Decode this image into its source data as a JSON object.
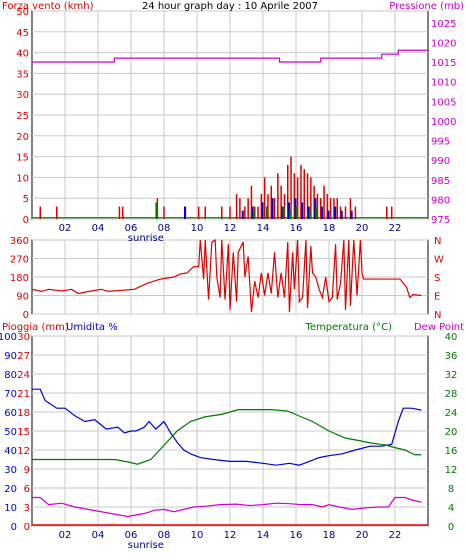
{
  "title": "24 hour graph day : 10 Aprile 2007",
  "colors": {
    "wind": "#dd0000",
    "wind_b": "#0000cc",
    "wind_g": "#008000",
    "pressure": "#cc00cc",
    "direction": "#dd0000",
    "humidity": "#0000cc",
    "temperature": "#007700",
    "dewpoint": "#cc00cc",
    "rain": "#dd0000",
    "grid": "#c8c8c8"
  },
  "chart_data": [
    {
      "type": "bar",
      "name": "wind-pressure",
      "left_axis_label": "Forza vento (kmh)",
      "right_axis_label": "Pressione (mb)",
      "x_ticks": [
        "02",
        "04",
        "06",
        "08",
        "10",
        "12",
        "14",
        "16",
        "18",
        "20",
        "22"
      ],
      "sunrise_label": "sunrise",
      "sunrise_hour": 6.9,
      "y_left_ticks": [
        0,
        5,
        10,
        15,
        20,
        25,
        30,
        35,
        40,
        45,
        50
      ],
      "y_right_ticks": [
        975,
        980,
        985,
        990,
        995,
        1000,
        1005,
        1010,
        1015,
        1020,
        1025
      ],
      "ylim_left": [
        0,
        50
      ],
      "ylim_right": [
        975,
        1028
      ],
      "pressure_series": [
        [
          0,
          1015
        ],
        [
          5,
          1015
        ],
        [
          5,
          1016
        ],
        [
          11,
          1016
        ],
        [
          11,
          1016
        ],
        [
          15,
          1016
        ],
        [
          15,
          1015
        ],
        [
          17.5,
          1015
        ],
        [
          17.5,
          1016
        ],
        [
          20,
          1016
        ],
        [
          20,
          1016
        ],
        [
          21.2,
          1016
        ],
        [
          21.2,
          1017
        ],
        [
          22.2,
          1017
        ],
        [
          22.2,
          1018
        ],
        [
          24,
          1018
        ]
      ],
      "gust_bars": [
        [
          0.5,
          3
        ],
        [
          1.5,
          3
        ],
        [
          5.3,
          3
        ],
        [
          5.5,
          3
        ],
        [
          7.6,
          5
        ],
        [
          8.0,
          3
        ],
        [
          9.3,
          3
        ],
        [
          10.1,
          3
        ],
        [
          10.5,
          3
        ],
        [
          11.5,
          3
        ],
        [
          12.0,
          3
        ],
        [
          12.4,
          6
        ],
        [
          12.6,
          5
        ],
        [
          12.9,
          3
        ],
        [
          13.1,
          5
        ],
        [
          13.3,
          8
        ],
        [
          13.5,
          3
        ],
        [
          13.7,
          3
        ],
        [
          13.9,
          6
        ],
        [
          14.1,
          10
        ],
        [
          14.3,
          6
        ],
        [
          14.5,
          8
        ],
        [
          14.7,
          5
        ],
        [
          14.9,
          11
        ],
        [
          15.1,
          8
        ],
        [
          15.3,
          6
        ],
        [
          15.5,
          13
        ],
        [
          15.7,
          15
        ],
        [
          15.9,
          11
        ],
        [
          16.1,
          10
        ],
        [
          16.3,
          13
        ],
        [
          16.5,
          12
        ],
        [
          16.7,
          11
        ],
        [
          16.9,
          10
        ],
        [
          17.1,
          8
        ],
        [
          17.3,
          6
        ],
        [
          17.5,
          5
        ],
        [
          17.7,
          8
        ],
        [
          17.9,
          6
        ],
        [
          18.1,
          5
        ],
        [
          18.3,
          5
        ],
        [
          18.5,
          5
        ],
        [
          18.7,
          3
        ],
        [
          19.0,
          3
        ],
        [
          19.3,
          5
        ],
        [
          19.6,
          3
        ],
        [
          21.5,
          3
        ],
        [
          21.8,
          3
        ]
      ],
      "avg_bars_blue": [
        [
          9.2,
          3
        ],
        [
          12.7,
          2
        ],
        [
          13.3,
          3
        ],
        [
          13.9,
          4
        ],
        [
          14.5,
          5
        ],
        [
          15.1,
          3
        ],
        [
          15.5,
          4
        ],
        [
          15.9,
          5
        ],
        [
          16.3,
          4
        ],
        [
          16.7,
          3
        ],
        [
          17.1,
          5
        ],
        [
          17.5,
          3
        ],
        [
          17.9,
          2
        ],
        [
          18.3,
          3
        ],
        [
          18.7,
          2
        ],
        [
          19.3,
          2
        ]
      ],
      "avg_bars_green": [
        [
          7.6,
          4
        ],
        [
          13.5,
          2
        ],
        [
          14.3,
          3
        ],
        [
          15.3,
          3
        ],
        [
          15.7,
          2
        ],
        [
          16.1,
          3
        ],
        [
          16.9,
          2
        ],
        [
          17.3,
          3
        ]
      ]
    },
    {
      "type": "line",
      "name": "wind-direction",
      "y_left_ticks": [
        0,
        90,
        180,
        270,
        360
      ],
      "ylim": [
        0,
        360
      ],
      "right_labels": [
        "N",
        "W",
        "S",
        "E",
        "N"
      ],
      "direction_series": [
        [
          0.0,
          120
        ],
        [
          0.6,
          110
        ],
        [
          1.0,
          120
        ],
        [
          1.8,
          112
        ],
        [
          2.4,
          120
        ],
        [
          2.8,
          100
        ],
        [
          3.6,
          112
        ],
        [
          4.2,
          120
        ],
        [
          4.6,
          110
        ],
        [
          6.2,
          120
        ],
        [
          6.6,
          135
        ],
        [
          7.0,
          150
        ],
        [
          7.4,
          160
        ],
        [
          7.8,
          170
        ],
        [
          8.2,
          175
        ],
        [
          8.6,
          180
        ],
        [
          9.0,
          195
        ],
        [
          9.4,
          200
        ],
        [
          9.8,
          230
        ],
        [
          10.1,
          230
        ],
        [
          10.2,
          360
        ],
        [
          10.4,
          170
        ],
        [
          10.5,
          360
        ],
        [
          10.7,
          70
        ],
        [
          10.9,
          350
        ],
        [
          11.1,
          360
        ],
        [
          11.2,
          180
        ],
        [
          11.4,
          80
        ],
        [
          11.5,
          360
        ],
        [
          11.7,
          70
        ],
        [
          11.9,
          340
        ],
        [
          12.0,
          20
        ],
        [
          12.2,
          300
        ],
        [
          12.4,
          60
        ],
        [
          12.5,
          300
        ],
        [
          12.8,
          350
        ],
        [
          12.9,
          180
        ],
        [
          13.1,
          280
        ],
        [
          13.3,
          10
        ],
        [
          13.5,
          160
        ],
        [
          13.7,
          80
        ],
        [
          13.9,
          200
        ],
        [
          14.1,
          90
        ],
        [
          14.3,
          200
        ],
        [
          14.5,
          100
        ],
        [
          14.7,
          300
        ],
        [
          14.9,
          80
        ],
        [
          15.1,
          200
        ],
        [
          15.3,
          80
        ],
        [
          15.5,
          350
        ],
        [
          15.6,
          10
        ],
        [
          15.8,
          300
        ],
        [
          15.9,
          120
        ],
        [
          16.1,
          360
        ],
        [
          16.2,
          60
        ],
        [
          16.4,
          80
        ],
        [
          16.6,
          360
        ],
        [
          16.7,
          30
        ],
        [
          16.9,
          330
        ],
        [
          17.0,
          200
        ],
        [
          17.2,
          180
        ],
        [
          17.4,
          120
        ],
        [
          17.6,
          80
        ],
        [
          17.8,
          180
        ],
        [
          18.0,
          60
        ],
        [
          18.2,
          80
        ],
        [
          18.4,
          340
        ],
        [
          18.5,
          70
        ],
        [
          18.7,
          150
        ],
        [
          18.9,
          360
        ],
        [
          19.0,
          20
        ],
        [
          19.2,
          360
        ],
        [
          19.3,
          40
        ],
        [
          19.5,
          360
        ],
        [
          19.7,
          90
        ],
        [
          19.9,
          360
        ],
        [
          20.0,
          200
        ],
        [
          20.1,
          170
        ],
        [
          21.2,
          170
        ],
        [
          22.3,
          170
        ],
        [
          22.5,
          150
        ],
        [
          22.7,
          130
        ],
        [
          22.9,
          80
        ],
        [
          23.1,
          95
        ],
        [
          23.6,
          90
        ]
      ]
    },
    {
      "type": "line",
      "name": "humidity-temperature",
      "left_label_rain": "Pioggia (mm)",
      "left_label_humidity": "Umidita %",
      "right_label_temperature": "Temperatura (°C)",
      "right_label_dewpoint": "Dew Point",
      "y_humidity_ticks": [
        0,
        10,
        20,
        30,
        40,
        50,
        60,
        70,
        80,
        90,
        100
      ],
      "y_rain_ticks": [
        0,
        3,
        6,
        9,
        12,
        15,
        18,
        21,
        24,
        27,
        30
      ],
      "y_temp_ticks": [
        0,
        4,
        8,
        12,
        16,
        20,
        24,
        28,
        32,
        36,
        40
      ],
      "ylim_humidity": [
        0,
        100
      ],
      "ylim_temp": [
        0,
        40
      ],
      "humidity_series": [
        [
          0,
          72
        ],
        [
          0.5,
          72
        ],
        [
          0.8,
          66
        ],
        [
          1.5,
          62
        ],
        [
          2.0,
          62
        ],
        [
          2.6,
          58
        ],
        [
          3.2,
          55
        ],
        [
          3.8,
          56
        ],
        [
          4.5,
          51
        ],
        [
          5.2,
          52
        ],
        [
          5.6,
          49
        ],
        [
          6.0,
          50
        ],
        [
          6.3,
          50
        ],
        [
          6.8,
          52
        ],
        [
          7.1,
          55
        ],
        [
          7.5,
          51
        ],
        [
          8.0,
          55
        ],
        [
          8.4,
          49
        ],
        [
          8.8,
          44
        ],
        [
          9.2,
          40
        ],
        [
          9.6,
          38
        ],
        [
          10.2,
          36
        ],
        [
          11.0,
          35
        ],
        [
          12.0,
          34
        ],
        [
          13.0,
          34
        ],
        [
          14.0,
          33
        ],
        [
          14.8,
          32
        ],
        [
          15.6,
          33
        ],
        [
          16.2,
          32
        ],
        [
          16.8,
          34
        ],
        [
          17.4,
          36
        ],
        [
          18.0,
          37
        ],
        [
          18.8,
          38
        ],
        [
          19.6,
          40
        ],
        [
          20.5,
          42
        ],
        [
          21.2,
          42
        ],
        [
          21.8,
          43
        ],
        [
          22.2,
          55
        ],
        [
          22.5,
          62
        ],
        [
          23.0,
          62
        ],
        [
          23.6,
          61
        ]
      ],
      "temperature_series": [
        [
          0,
          14
        ],
        [
          1,
          14
        ],
        [
          2,
          14
        ],
        [
          3,
          14
        ],
        [
          4,
          14
        ],
        [
          5,
          14
        ],
        [
          5.8,
          13.5
        ],
        [
          6.4,
          13
        ],
        [
          7.2,
          14
        ],
        [
          8.0,
          17
        ],
        [
          8.8,
          20
        ],
        [
          9.6,
          22
        ],
        [
          10.5,
          23
        ],
        [
          11.5,
          23.5
        ],
        [
          12.5,
          24.5
        ],
        [
          13.5,
          24.5
        ],
        [
          14.5,
          24.5
        ],
        [
          15.5,
          24.2
        ],
        [
          16.3,
          23
        ],
        [
          17.0,
          22
        ],
        [
          18.0,
          20
        ],
        [
          19.0,
          18.5
        ],
        [
          19.8,
          18
        ],
        [
          20.5,
          17.5
        ],
        [
          21.5,
          17
        ],
        [
          22.0,
          16.5
        ],
        [
          22.6,
          16
        ],
        [
          23.2,
          15
        ],
        [
          23.6,
          15
        ]
      ],
      "dewpoint_series": [
        [
          0,
          6
        ],
        [
          0.5,
          6
        ],
        [
          1.0,
          4.5
        ],
        [
          1.8,
          4.8
        ],
        [
          2.6,
          4
        ],
        [
          3.4,
          3.5
        ],
        [
          4.2,
          3
        ],
        [
          5.0,
          2.5
        ],
        [
          5.8,
          2
        ],
        [
          6.6,
          2.5
        ],
        [
          7.0,
          2.8
        ],
        [
          7.4,
          3.3
        ],
        [
          8.0,
          3.5
        ],
        [
          8.6,
          3
        ],
        [
          9.2,
          3.5
        ],
        [
          9.8,
          4
        ],
        [
          10.6,
          4.2
        ],
        [
          11.4,
          4.5
        ],
        [
          12.4,
          4.6
        ],
        [
          13.2,
          4.3
        ],
        [
          14.0,
          4.5
        ],
        [
          14.8,
          4.8
        ],
        [
          15.6,
          4.7
        ],
        [
          16.3,
          4.5
        ],
        [
          17.0,
          4.5
        ],
        [
          17.6,
          4
        ],
        [
          18.0,
          4.5
        ],
        [
          18.6,
          4
        ],
        [
          19.4,
          3.5
        ],
        [
          20.2,
          3.8
        ],
        [
          21.0,
          4
        ],
        [
          21.6,
          4
        ],
        [
          22.0,
          6
        ],
        [
          22.6,
          6
        ],
        [
          23.0,
          5.5
        ],
        [
          23.6,
          5
        ]
      ],
      "rain_series": [
        [
          0,
          0
        ],
        [
          24,
          0
        ]
      ],
      "x_ticks": [
        "02",
        "04",
        "06",
        "08",
        "10",
        "12",
        "14",
        "16",
        "18",
        "20",
        "22"
      ],
      "sunrise_label": "sunrise",
      "sunrise_hour": 6.9
    }
  ]
}
